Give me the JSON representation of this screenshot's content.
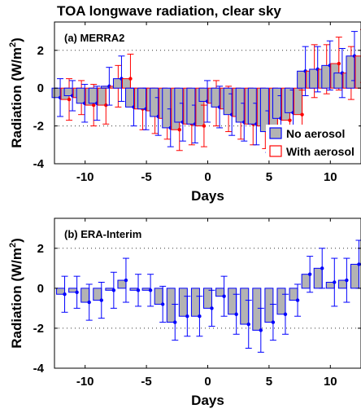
{
  "figure_title": "TOA longwave radiation, clear sky",
  "colors": {
    "bar_fill": "#b3b3b3",
    "no_aerosol": "#0000ff",
    "with_aerosol": "#ff0000",
    "axis": "#000000"
  },
  "chart_data": [
    {
      "type": "bar",
      "panel_label": "(a) MERRA2",
      "xlabel": "Days",
      "ylabel": "Radiation (W/m2)",
      "ylabel_main": "Radiation (W/m",
      "ylabel_sup": "2",
      "ylabel_close": ")",
      "xlim": [
        -12.5,
        12.5
      ],
      "ylim": [
        -4,
        3.5
      ],
      "xticks": [
        -10,
        -5,
        0,
        5,
        10
      ],
      "yticks": [
        -4,
        -2,
        0,
        2
      ],
      "dotted_gridlines_y": [
        -2,
        2
      ],
      "legend": {
        "position": "bottom-right",
        "entries": [
          "No aerosol",
          "With aerosol"
        ]
      },
      "x": [
        -12,
        -11,
        -10,
        -9,
        -8,
        -7,
        -6,
        -5,
        -4,
        -3,
        -2,
        -1,
        0,
        1,
        2,
        3,
        4,
        5,
        6,
        7,
        8,
        9,
        10,
        11,
        12
      ],
      "series": [
        {
          "name": "No aerosol",
          "values": [
            -0.5,
            -0.4,
            -0.8,
            -0.8,
            0.1,
            0.5,
            -1.0,
            -1.1,
            -1.5,
            -2.1,
            -1.8,
            -1.9,
            -0.7,
            -1.0,
            -1.4,
            -1.8,
            -1.9,
            -2.3,
            -1.6,
            -1.3,
            0.9,
            1.0,
            1.2,
            0.8,
            1.7
          ],
          "err": [
            1.0,
            0.8,
            1.0,
            0.9,
            1.0,
            1.2,
            1.0,
            1.1,
            1.0,
            1.0,
            1.0,
            1.0,
            1.1,
            1.1,
            1.1,
            1.0,
            1.1,
            1.1,
            1.2,
            1.2,
            1.3,
            1.2,
            1.3,
            1.3,
            1.3
          ]
        },
        {
          "name": "With aerosol",
          "values": [
            -0.6,
            -0.5,
            -0.9,
            -0.9,
            0.1,
            0.5,
            -1.1,
            -1.2,
            -1.6,
            -2.2,
            -1.9,
            -2.0,
            -0.8,
            -1.1,
            -1.5,
            -1.9,
            -2.0,
            -2.4,
            -1.7,
            -1.4,
            0.9,
            1.0,
            1.3,
            0.8,
            1.7
          ],
          "err": [
            1.1,
            0.9,
            1.1,
            1.0,
            1.1,
            1.3,
            1.1,
            1.2,
            1.1,
            1.1,
            1.1,
            1.1,
            1.2,
            1.2,
            1.2,
            1.1,
            1.2,
            1.2,
            1.3,
            1.3,
            1.4,
            1.3,
            1.4,
            1.4,
            1.4
          ]
        }
      ]
    },
    {
      "type": "bar",
      "panel_label": "(b) ERA-Interim",
      "xlabel": "Days",
      "ylabel": "Radiation (W/m2)",
      "ylabel_main": "Radiation (W/m",
      "ylabel_sup": "2",
      "ylabel_close": ")",
      "xlim": [
        -12.5,
        12.5
      ],
      "ylim": [
        -4,
        3.5
      ],
      "xticks": [
        -10,
        -5,
        0,
        5,
        10
      ],
      "yticks": [
        -4,
        -2,
        0,
        2
      ],
      "dotted_gridlines_y": [
        -2,
        2
      ],
      "x": [
        -12,
        -11,
        -10,
        -9,
        -8,
        -7,
        -6,
        -5,
        -4,
        -3,
        -2,
        -1,
        0,
        1,
        2,
        3,
        4,
        5,
        6,
        7,
        8,
        9,
        10,
        11,
        12
      ],
      "series": [
        {
          "name": "No aerosol",
          "values": [
            -0.3,
            -0.2,
            -0.7,
            -0.6,
            -0.1,
            0.4,
            -0.1,
            -0.1,
            -0.8,
            -1.7,
            -1.4,
            -1.4,
            -1.0,
            -0.4,
            -1.3,
            -1.8,
            -2.1,
            -1.7,
            -1.3,
            -0.6,
            0.7,
            1.0,
            0.3,
            0.4,
            1.2
          ],
          "err": [
            0.9,
            0.8,
            0.9,
            0.9,
            0.9,
            1.1,
            0.8,
            0.8,
            0.9,
            0.9,
            1.0,
            1.0,
            0.9,
            1.0,
            1.0,
            1.2,
            1.1,
            0.9,
            1.0,
            0.8,
            0.9,
            1.0,
            1.2,
            1.1,
            1.2
          ]
        }
      ]
    }
  ]
}
